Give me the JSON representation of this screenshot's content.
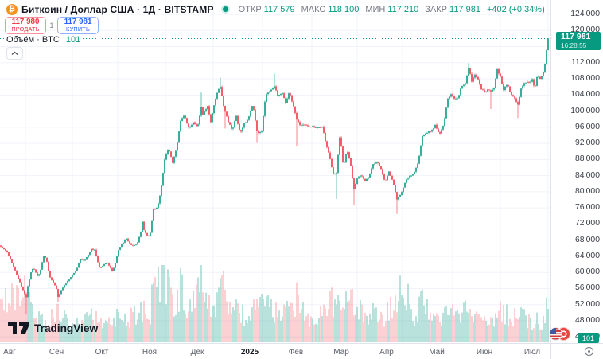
{
  "header": {
    "symbol_icon": "₿",
    "title": "Биткоин / Доллар США · 1Д · BITSTAMP",
    "ohlc": [
      {
        "label": "ОТКР",
        "value": "117 579"
      },
      {
        "label": "МАКС",
        "value": "118 100"
      },
      {
        "label": "МИН",
        "value": "117 210"
      },
      {
        "label": "ЗАКР",
        "value": "117 981"
      }
    ],
    "change": "+402 (+0,34%)"
  },
  "trade": {
    "sell_price": "117 980",
    "sell_label": "ПРОДАТЬ",
    "spread": "1",
    "buy_price": "117 981",
    "buy_label": "КУПИТЬ"
  },
  "volume_legend": {
    "label": "Объём · BTC",
    "value": "101"
  },
  "watermark": "TradingView",
  "price_axis": {
    "ticks": [
      124000,
      120000,
      116000,
      112000,
      108000,
      104000,
      100000,
      96000,
      92000,
      88000,
      84000,
      80000,
      76000,
      72000,
      68000,
      64000,
      60000,
      56000,
      52000,
      48000,
      44000
    ],
    "current": {
      "price_text": "117 981",
      "time_text": "16:28:55"
    },
    "volume_badge": "101"
  },
  "time_axis": {
    "labels": [
      [
        "Авг",
        12
      ],
      [
        "Сен",
        71
      ],
      [
        "Окт",
        128
      ],
      [
        "Ноя",
        188
      ],
      [
        "Дек",
        248
      ],
      [
        "2025",
        314
      ],
      [
        "Фев",
        372
      ],
      [
        "Мар",
        429
      ],
      [
        "Апр",
        486
      ],
      [
        "Май",
        549
      ],
      [
        "Июн",
        609
      ],
      [
        "Июл",
        669
      ]
    ],
    "gridlines": [
      32,
      91,
      148,
      208,
      268,
      330,
      392,
      449,
      506,
      569,
      629,
      689
    ]
  },
  "chart_data": {
    "type": "candlestick_with_volume",
    "title": "Биткоин / Доллар США",
    "exchange": "BITSTAMP",
    "timeframe": "1Д",
    "current": {
      "open": 117579,
      "high": 118100,
      "low": 117210,
      "close": 117981,
      "change": 402,
      "change_pct": "+0,34%"
    },
    "current_volume_btc": 101,
    "ylim": [
      44000,
      124000
    ],
    "y_map": {
      "p1": 124000,
      "y1": 18,
      "p2": 48000,
      "y2": 403
    },
    "n_candles": 345,
    "x0": 1,
    "x_step": 2,
    "volume_base_y": 430,
    "volume_max_h": 97,
    "colors": {
      "up": "#089981",
      "down": "#f23645",
      "vol_up": "rgba(8,153,129,0.4)",
      "vol_down": "rgba(242,54,69,0.33)",
      "grid": "#f0f3fa",
      "dotted": "#089981"
    },
    "anchor_remap": [
      [
        0,
        0
      ],
      [
        4,
        16
      ],
      [
        26,
        36
      ],
      [
        41,
        57
      ],
      [
        70,
        89
      ],
      [
        82,
        103
      ],
      [
        90,
        113
      ],
      [
        101,
        126
      ],
      [
        113,
        138
      ],
      [
        125,
        153
      ],
      [
        139,
        172
      ],
      [
        151,
        186
      ],
      [
        163,
        198
      ],
      [
        175,
        211
      ],
      [
        185,
        222
      ],
      [
        195,
        234
      ],
      [
        207,
        249
      ],
      [
        219,
        265
      ],
      [
        231,
        281
      ],
      [
        243,
        294
      ],
      [
        255,
        306
      ],
      [
        265,
        316
      ],
      [
        273,
        325
      ],
      [
        281,
        334
      ],
      [
        287,
        339
      ],
      [
        294,
        344
      ]
    ],
    "close_path": [
      [
        0,
        66500
      ],
      [
        1,
        65000
      ],
      [
        2,
        61500
      ],
      [
        3,
        57500
      ],
      [
        4,
        53800
      ],
      [
        5,
        56500
      ],
      [
        8,
        61000
      ],
      [
        10,
        60500
      ],
      [
        12,
        58800
      ],
      [
        14,
        60900
      ],
      [
        16,
        64100
      ],
      [
        18,
        63200
      ],
      [
        20,
        59100
      ],
      [
        23,
        57300
      ],
      [
        25,
        55800
      ],
      [
        26,
        53900
      ],
      [
        28,
        56200
      ],
      [
        30,
        57600
      ],
      [
        32,
        59100
      ],
      [
        34,
        60400
      ],
      [
        36,
        63200
      ],
      [
        38,
        62900
      ],
      [
        41,
        65700
      ],
      [
        43,
        65600
      ],
      [
        44,
        63300
      ],
      [
        46,
        60800
      ],
      [
        48,
        62100
      ],
      [
        50,
        62500
      ],
      [
        53,
        60300
      ],
      [
        55,
        62800
      ],
      [
        56,
        65100
      ],
      [
        58,
        67000
      ],
      [
        61,
        68400
      ],
      [
        63,
        67000
      ],
      [
        65,
        66600
      ],
      [
        67,
        67000
      ],
      [
        69,
        69900
      ],
      [
        70,
        72700
      ],
      [
        71,
        70200
      ],
      [
        72,
        69400
      ],
      [
        74,
        68800
      ],
      [
        76,
        75600
      ],
      [
        78,
        76000
      ],
      [
        80,
        80400
      ],
      [
        82,
        88000
      ],
      [
        83,
        89900
      ],
      [
        84,
        90500
      ],
      [
        86,
        87300
      ],
      [
        88,
        91000
      ],
      [
        90,
        97500
      ],
      [
        92,
        98900
      ],
      [
        94,
        95900
      ],
      [
        96,
        96400
      ],
      [
        97,
        97300
      ],
      [
        99,
        95800
      ],
      [
        101,
        101200
      ],
      [
        102,
        99000
      ],
      [
        103,
        99900
      ],
      [
        105,
        101100
      ],
      [
        107,
        97300
      ],
      [
        109,
        101400
      ],
      [
        111,
        104500
      ],
      [
        113,
        106100
      ],
      [
        115,
        100200
      ],
      [
        117,
        97500
      ],
      [
        119,
        95300
      ],
      [
        121,
        98800
      ],
      [
        123,
        94300
      ],
      [
        125,
        96900
      ],
      [
        127,
        98200
      ],
      [
        129,
        102100
      ],
      [
        131,
        94600
      ],
      [
        133,
        94700
      ],
      [
        135,
        104100
      ],
      [
        137,
        104900
      ],
      [
        139,
        106100
      ],
      [
        141,
        103700
      ],
      [
        143,
        104800
      ],
      [
        145,
        102100
      ],
      [
        147,
        104700
      ],
      [
        149,
        101600
      ],
      [
        151,
        97700
      ],
      [
        153,
        96600
      ],
      [
        157,
        96500
      ],
      [
        161,
        96100
      ],
      [
        165,
        95800
      ],
      [
        167,
        96100
      ],
      [
        169,
        91500
      ],
      [
        171,
        88700
      ],
      [
        173,
        84300
      ],
      [
        175,
        84700
      ],
      [
        177,
        94300
      ],
      [
        179,
        86000
      ],
      [
        181,
        90600
      ],
      [
        183,
        86800
      ],
      [
        185,
        80700
      ],
      [
        187,
        83700
      ],
      [
        189,
        84000
      ],
      [
        191,
        82600
      ],
      [
        193,
        84000
      ],
      [
        195,
        86800
      ],
      [
        197,
        87500
      ],
      [
        199,
        85800
      ],
      [
        201,
        82500
      ],
      [
        203,
        85200
      ],
      [
        205,
        82500
      ],
      [
        207,
        78200
      ],
      [
        209,
        79600
      ],
      [
        211,
        82600
      ],
      [
        213,
        83800
      ],
      [
        215,
        84500
      ],
      [
        217,
        87500
      ],
      [
        219,
        93700
      ],
      [
        221,
        94700
      ],
      [
        223,
        95000
      ],
      [
        225,
        96500
      ],
      [
        227,
        94300
      ],
      [
        229,
        96800
      ],
      [
        231,
        103200
      ],
      [
        233,
        104100
      ],
      [
        235,
        102700
      ],
      [
        237,
        103500
      ],
      [
        239,
        106400
      ],
      [
        241,
        106800
      ],
      [
        243,
        110700
      ],
      [
        245,
        107300
      ],
      [
        247,
        109000
      ],
      [
        249,
        107800
      ],
      [
        251,
        105600
      ],
      [
        253,
        104600
      ],
      [
        255,
        105400
      ],
      [
        257,
        104700
      ],
      [
        259,
        105700
      ],
      [
        261,
        110200
      ],
      [
        263,
        108600
      ],
      [
        265,
        105400
      ],
      [
        267,
        106800
      ],
      [
        269,
        104500
      ],
      [
        271,
        103300
      ],
      [
        273,
        101500
      ],
      [
        275,
        105900
      ],
      [
        277,
        107300
      ],
      [
        279,
        107000
      ],
      [
        281,
        107800
      ],
      [
        283,
        105700
      ],
      [
        285,
        108900
      ],
      [
        287,
        108100
      ],
      [
        289,
        108900
      ],
      [
        291,
        111300
      ],
      [
        293,
        116000
      ],
      [
        294,
        117981
      ]
    ],
    "wick_events": [
      [
        4,
        "low",
        49700
      ],
      [
        26,
        "low",
        52600
      ],
      [
        101,
        "high",
        104600
      ],
      [
        113,
        "high",
        108300
      ],
      [
        115,
        "low",
        95700
      ],
      [
        131,
        "low",
        92100
      ],
      [
        139,
        "high",
        109300
      ],
      [
        151,
        "low",
        91200
      ],
      [
        175,
        "low",
        78200
      ],
      [
        185,
        "low",
        76700
      ],
      [
        207,
        "low",
        74500
      ],
      [
        243,
        "high",
        111900
      ],
      [
        257,
        "low",
        100500
      ],
      [
        273,
        "low",
        98300
      ],
      [
        294,
        "high",
        118100
      ]
    ],
    "volume_path": [
      [
        0,
        0.55
      ],
      [
        3,
        0.8
      ],
      [
        4,
        0.95
      ],
      [
        6,
        0.6
      ],
      [
        10,
        0.3
      ],
      [
        16,
        0.35
      ],
      [
        20,
        0.3
      ],
      [
        26,
        0.5
      ],
      [
        30,
        0.3
      ],
      [
        36,
        0.3
      ],
      [
        41,
        0.35
      ],
      [
        46,
        0.3
      ],
      [
        53,
        0.25
      ],
      [
        56,
        0.35
      ],
      [
        61,
        0.3
      ],
      [
        70,
        0.45
      ],
      [
        74,
        0.35
      ],
      [
        76,
        0.8
      ],
      [
        80,
        0.85
      ],
      [
        82,
        1.0
      ],
      [
        84,
        0.7
      ],
      [
        88,
        0.55
      ],
      [
        90,
        0.75
      ],
      [
        94,
        0.5
      ],
      [
        101,
        0.9
      ],
      [
        103,
        0.6
      ],
      [
        107,
        0.5
      ],
      [
        111,
        0.55
      ],
      [
        113,
        0.65
      ],
      [
        115,
        0.8
      ],
      [
        119,
        0.5
      ],
      [
        123,
        0.4
      ],
      [
        127,
        0.35
      ],
      [
        129,
        0.45
      ],
      [
        131,
        0.55
      ],
      [
        135,
        0.5
      ],
      [
        139,
        0.45
      ],
      [
        145,
        0.5
      ],
      [
        149,
        0.4
      ],
      [
        151,
        0.6
      ],
      [
        157,
        0.3
      ],
      [
        163,
        0.25
      ],
      [
        169,
        0.5
      ],
      [
        171,
        0.55
      ],
      [
        173,
        0.6
      ],
      [
        175,
        0.55
      ],
      [
        177,
        0.7
      ],
      [
        179,
        0.55
      ],
      [
        185,
        0.6
      ],
      [
        191,
        0.35
      ],
      [
        195,
        0.4
      ],
      [
        201,
        0.35
      ],
      [
        205,
        0.5
      ],
      [
        207,
        0.65
      ],
      [
        211,
        0.7
      ],
      [
        215,
        0.35
      ],
      [
        219,
        0.55
      ],
      [
        223,
        0.35
      ],
      [
        227,
        0.3
      ],
      [
        231,
        0.5
      ],
      [
        235,
        0.35
      ],
      [
        239,
        0.35
      ],
      [
        243,
        0.55
      ],
      [
        247,
        0.3
      ],
      [
        251,
        0.35
      ],
      [
        255,
        0.3
      ],
      [
        261,
        0.4
      ],
      [
        265,
        0.45
      ],
      [
        269,
        0.3
      ],
      [
        273,
        0.4
      ],
      [
        275,
        0.35
      ],
      [
        281,
        0.3
      ],
      [
        285,
        0.3
      ],
      [
        289,
        0.25
      ],
      [
        291,
        0.35
      ],
      [
        293,
        0.5
      ],
      [
        294,
        0.45
      ]
    ]
  }
}
